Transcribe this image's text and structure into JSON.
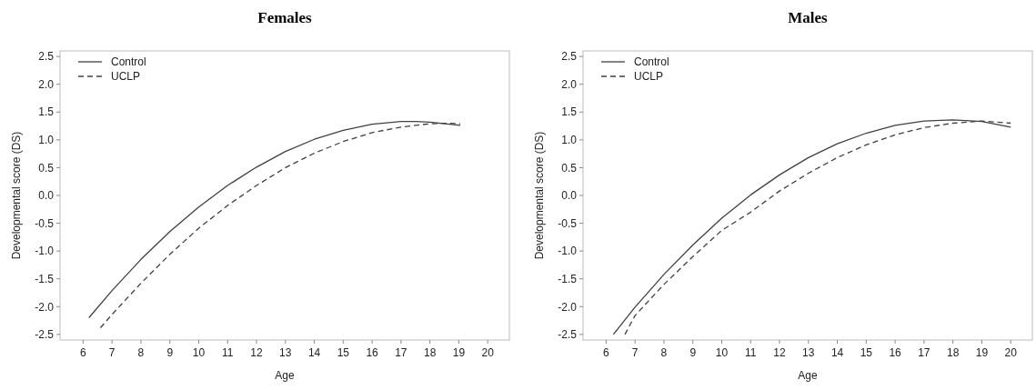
{
  "chart_data": [
    {
      "type": "line",
      "title": "Females",
      "xlabel": "Age",
      "ylabel": "Developmental score (DS)",
      "xlim": [
        5.2,
        20.75
      ],
      "ylim": [
        -2.6,
        2.6
      ],
      "xticks": [
        6,
        7,
        8,
        9,
        10,
        11,
        12,
        13,
        14,
        15,
        16,
        17,
        18,
        19,
        20
      ],
      "yticks": [
        {
          "value": -2.5,
          "label": "-2.5"
        },
        {
          "value": -2,
          "label": "-2.0"
        },
        {
          "value": -1.5,
          "label": "-1.5"
        },
        {
          "value": -1,
          "label": "-1.0"
        },
        {
          "value": -0.5,
          "label": "-0.5"
        },
        {
          "value": 0,
          "label": "0.0"
        },
        {
          "value": 0.5,
          "label": "0.5"
        },
        {
          "value": 1,
          "label": "1.0"
        },
        {
          "value": 1.5,
          "label": "1.5"
        },
        {
          "value": 2,
          "label": "2.0"
        },
        {
          "value": 2.5,
          "label": "2.5"
        }
      ],
      "grid": false,
      "legend": "top left",
      "series": [
        {
          "name": "Control",
          "color": "#404040",
          "line_style": "solid",
          "x": [
            6.2,
            7,
            8,
            9,
            10,
            11,
            12,
            13,
            14,
            15,
            16,
            17,
            17.5,
            18,
            19.05
          ],
          "values": [
            -2.2,
            -1.71,
            -1.15,
            -0.65,
            -0.21,
            0.18,
            0.51,
            0.79,
            1.01,
            1.17,
            1.28,
            1.33,
            1.33,
            1.32,
            1.26
          ]
        },
        {
          "name": "UCLP",
          "color": "#404040",
          "line_style": "dashed",
          "x": [
            6.6,
            7,
            8,
            9,
            10,
            11,
            12,
            13,
            14,
            15,
            16,
            17,
            18,
            18.6,
            19.05
          ],
          "values": [
            -2.38,
            -2.14,
            -1.58,
            -1.06,
            -0.59,
            -0.18,
            0.18,
            0.5,
            0.76,
            0.97,
            1.13,
            1.23,
            1.29,
            1.3,
            1.29
          ]
        }
      ]
    },
    {
      "type": "line",
      "title": "Males",
      "xlabel": "Age",
      "ylabel": "Developmental score (DS)",
      "xlim": [
        5.2,
        20.75
      ],
      "ylim": [
        -2.6,
        2.6
      ],
      "xticks": [
        6,
        7,
        8,
        9,
        10,
        11,
        12,
        13,
        14,
        15,
        16,
        17,
        18,
        19,
        20
      ],
      "yticks": [
        {
          "value": -2.5,
          "label": "-2.5"
        },
        {
          "value": -2,
          "label": "-2.0"
        },
        {
          "value": -1.5,
          "label": "-1.5"
        },
        {
          "value": -1,
          "label": "-1.0"
        },
        {
          "value": -0.5,
          "label": "-0.5"
        },
        {
          "value": 0,
          "label": "0.0"
        },
        {
          "value": 0.5,
          "label": "0.5"
        },
        {
          "value": 1,
          "label": "1.0"
        },
        {
          "value": 1.5,
          "label": "1.5"
        },
        {
          "value": 2,
          "label": "2.0"
        },
        {
          "value": 2.5,
          "label": "2.5"
        }
      ],
      "grid": false,
      "legend": "top left",
      "series": [
        {
          "name": "Control",
          "color": "#404040",
          "line_style": "solid",
          "x": [
            6.25,
            7,
            8,
            9,
            10,
            11,
            12,
            13,
            14,
            15,
            16,
            17,
            18,
            19,
            20
          ],
          "values": [
            -2.5,
            -2.01,
            -1.42,
            -0.89,
            -0.41,
            0.01,
            0.37,
            0.68,
            0.93,
            1.12,
            1.26,
            1.34,
            1.36,
            1.33,
            1.23
          ]
        },
        {
          "name": "UCLP",
          "color": "#404040",
          "line_style": "dashed",
          "x": [
            6.65,
            7,
            8,
            9,
            10,
            11,
            12,
            13,
            14,
            15,
            16,
            17,
            18,
            19,
            20
          ],
          "values": [
            -2.5,
            -2.16,
            -1.6,
            -1.1,
            -0.63,
            -0.3,
            0.08,
            0.4,
            0.68,
            0.91,
            1.09,
            1.22,
            1.3,
            1.34,
            1.3
          ]
        }
      ]
    }
  ]
}
